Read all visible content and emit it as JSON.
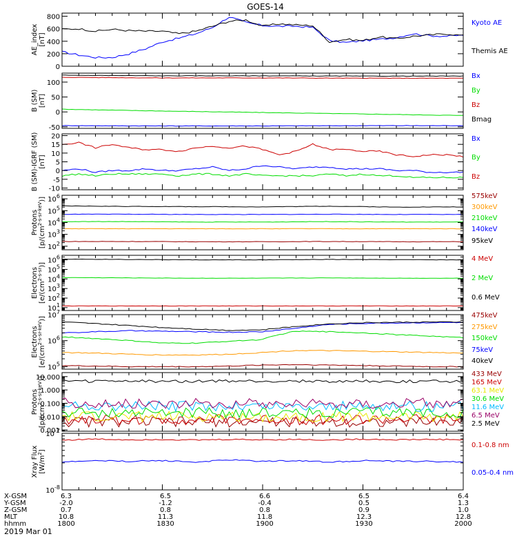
{
  "title": "GOES-14",
  "date_label": "2019 Mar 01",
  "colors": {
    "black": "#000000",
    "blue": "#0000ff",
    "green": "#00dd00",
    "red": "#cc0000",
    "orange": "#ff9900",
    "yellow": "#e8e800",
    "cyan": "#00bbff",
    "darkred": "#990000",
    "purple": "#990066",
    "darkblue": "#0000aa"
  },
  "footer": {
    "row_labels": [
      "X-GSM",
      "Y-GSM",
      "Z-GSM",
      "MLT",
      "hhmm"
    ],
    "columns": [
      [
        "6.3",
        "-2.0",
        "0.7",
        "10.8",
        "1800"
      ],
      [
        "6.5",
        "-1.2",
        "0.8",
        "11.3",
        "1830"
      ],
      [
        "6.6",
        "-0.4",
        "0.8",
        "11.8",
        "1900"
      ],
      [
        "6.5",
        "0.5",
        "0.9",
        "12.3",
        "1930"
      ],
      [
        "6.4",
        "1.3",
        "1.0",
        "12.8",
        "2000"
      ]
    ]
  },
  "chart_data": [
    {
      "type": "line",
      "ylabel": "AE_index [nT]",
      "scale": "linear",
      "ylim": [
        0,
        850
      ],
      "yticks": [
        0,
        200,
        400,
        600,
        800
      ],
      "ytick_labels": [
        "0",
        "200",
        "400",
        "600",
        "800"
      ],
      "x": [
        0,
        5,
        10,
        15,
        20,
        25,
        30,
        35,
        40,
        45,
        50,
        55,
        60,
        65,
        70,
        75,
        80,
        85,
        90,
        95,
        100,
        105,
        110,
        115,
        120
      ],
      "series": [
        {
          "name": "Kyoto AE",
          "color": "#0000ff",
          "values": [
            230,
            180,
            140,
            140,
            200,
            280,
            390,
            450,
            520,
            620,
            790,
            700,
            650,
            640,
            640,
            620,
            410,
            380,
            410,
            430,
            460,
            520,
            490,
            480,
            500
          ]
        },
        {
          "name": "Themis AE",
          "color": "#000000",
          "values": [
            590,
            600,
            560,
            590,
            570,
            560,
            560,
            520,
            560,
            640,
            720,
            740,
            640,
            680,
            660,
            650,
            390,
            430,
            410,
            470,
            440,
            480,
            500,
            520,
            490
          ]
        }
      ]
    },
    {
      "type": "line",
      "ylabel": "B (SM) [nT]",
      "scale": "linear",
      "ylim": [
        -55,
        130
      ],
      "yticks": [
        -50,
        0,
        50,
        100
      ],
      "ytick_labels": [
        "-50",
        "0",
        "50",
        "100"
      ],
      "x": [
        0,
        30,
        60,
        90,
        120
      ],
      "series": [
        {
          "name": "Bx",
          "color": "#0000ff",
          "values": [
            -46,
            -47,
            -47,
            -46,
            -46
          ]
        },
        {
          "name": "By",
          "color": "#00dd00",
          "values": [
            9,
            3,
            -2,
            -7,
            -12
          ]
        },
        {
          "name": "Bz",
          "color": "#cc0000",
          "values": [
            116,
            114,
            114,
            113,
            113
          ]
        },
        {
          "name": "Bmag",
          "color": "#000000",
          "values": [
            123,
            121,
            121,
            120,
            120
          ]
        }
      ]
    },
    {
      "type": "line",
      "ylabel": "B (SM)-IGRF (SM) [nT]",
      "scale": "linear",
      "ylim": [
        -11,
        21
      ],
      "yticks": [
        -10,
        -5,
        0,
        5,
        10,
        15,
        20
      ],
      "ytick_labels": [
        "-10",
        "-5",
        "0",
        "5",
        "10",
        "15",
        "20"
      ],
      "x": [
        0,
        5,
        10,
        15,
        20,
        25,
        30,
        35,
        40,
        45,
        50,
        55,
        60,
        65,
        70,
        75,
        80,
        85,
        90,
        95,
        100,
        105,
        110,
        115,
        120
      ],
      "series": [
        {
          "name": "Bx",
          "color": "#0000ff",
          "values": [
            0,
            1,
            -1,
            0,
            0,
            1,
            0,
            0,
            1,
            2,
            0,
            1,
            3,
            2,
            1,
            2,
            2,
            1,
            1,
            1,
            0,
            0,
            -1,
            -1,
            -1
          ]
        },
        {
          "name": "By",
          "color": "#00dd00",
          "values": [
            -3,
            -2,
            -3,
            -2,
            -2,
            -2,
            -2,
            -3,
            -2,
            -2,
            -3,
            -2,
            -3,
            -3,
            -3,
            -3,
            -2,
            -3,
            -2,
            -3,
            -3,
            -4,
            -4,
            -4,
            -4
          ]
        },
        {
          "name": "Bz",
          "color": "#cc0000",
          "values": [
            15,
            16,
            13,
            15,
            13,
            12,
            12,
            11,
            13,
            14,
            13,
            14,
            12,
            9,
            11,
            15,
            12,
            12,
            11,
            11,
            9,
            8,
            9,
            9,
            8
          ]
        }
      ]
    },
    {
      "type": "line",
      "ylabel": "Protons [p/(cm^2-s-sr-keV)]",
      "scale": "log",
      "ylim": [
        50,
        2000000
      ],
      "yticks": [
        100,
        1000,
        10000,
        100000,
        1000000
      ],
      "ytick_labels": [
        "10^2",
        "10^3",
        "10^4",
        "10^5",
        "10^6"
      ],
      "x": [
        0,
        20,
        40,
        60,
        80,
        100,
        120
      ],
      "series": [
        {
          "name": "575keV",
          "color": "#990000",
          "values": [
            250,
            250,
            240,
            240,
            250,
            240,
            240
          ]
        },
        {
          "name": "300keV",
          "color": "#ff9900",
          "values": [
            3000,
            3000,
            3000,
            3000,
            3000,
            3000,
            3000
          ]
        },
        {
          "name": "210keV",
          "color": "#00dd00",
          "values": [
            12000,
            12000,
            11000,
            11000,
            12000,
            11000,
            11000
          ]
        },
        {
          "name": "140keV",
          "color": "#0000ff",
          "values": [
            50000,
            50000,
            48000,
            48000,
            50000,
            48000,
            48000
          ]
        },
        {
          "name": "95keV",
          "color": "#000000",
          "values": [
            250000,
            230000,
            220000,
            210000,
            240000,
            200000,
            210000
          ]
        }
      ]
    },
    {
      "type": "line",
      "ylabel": "Electrons [e/(cm^2-s-sr)]",
      "scale": "log",
      "ylim": [
        5,
        3000000
      ],
      "yticks": [
        10,
        100,
        1000,
        10000,
        100000,
        1000000
      ],
      "ytick_labels": [
        "10^1",
        "10^2",
        "10^3",
        "10^4",
        "10^5",
        "10^6"
      ],
      "x": [
        0,
        20,
        40,
        60,
        80,
        100,
        120
      ],
      "series": [
        {
          "name": "4 MeV",
          "color": "#cc0000",
          "values": [
            15,
            15,
            15,
            15,
            15,
            15,
            15
          ]
        },
        {
          "name": "2 MeV",
          "color": "#00dd00",
          "values": [
            14000,
            13000,
            12000,
            12000,
            13000,
            12000,
            12000
          ]
        },
        {
          "name": "0.6 MeV",
          "color": "#000000",
          "values": [
            1200000,
            1100000,
            1000000,
            1000000,
            1100000,
            1050000,
            1000000
          ]
        }
      ]
    },
    {
      "type": "line",
      "ylabel": "Electrons [e/(cm^2-s-sr-keV)]",
      "scale": "log",
      "ylim": [
        80000,
        10000000
      ],
      "yticks": [
        100000,
        1000000,
        10000000
      ],
      "ytick_labels": [
        "10^5",
        "10^6",
        "10^7"
      ],
      "x": [
        0,
        10,
        20,
        30,
        40,
        50,
        60,
        70,
        80,
        90,
        100,
        110,
        120
      ],
      "series": [
        {
          "name": "475keV",
          "color": "#990000",
          "values": [
            110000,
            105000,
            100000,
            100000,
            100000,
            105000,
            115000,
            120000,
            115000,
            110000,
            105000,
            100000,
            100000
          ]
        },
        {
          "name": "275keV",
          "color": "#ff9900",
          "values": [
            350000,
            330000,
            300000,
            280000,
            280000,
            300000,
            350000,
            420000,
            410000,
            390000,
            370000,
            350000,
            330000
          ]
        },
        {
          "name": "150keV",
          "color": "#00dd00",
          "values": [
            1400000,
            1200000,
            1000000,
            800000,
            800000,
            950000,
            1100000,
            2300000,
            2200000,
            2000000,
            1700000,
            1500000,
            1300000
          ]
        },
        {
          "name": "75keV",
          "color": "#0000ff",
          "values": [
            2000000,
            2200000,
            2400000,
            2300000,
            2200000,
            2100000,
            2200000,
            3000000,
            4200000,
            4600000,
            4800000,
            4900000,
            5000000
          ]
        },
        {
          "name": "40keV",
          "color": "#000000",
          "values": [
            5200000,
            4500000,
            3800000,
            3200000,
            2800000,
            2500000,
            2600000,
            3500000,
            4400000,
            4900000,
            5100000,
            5200000,
            5200000
          ]
        }
      ]
    },
    {
      "type": "line",
      "ylabel": "Protons [p/(cm^2-s-sr-keV)]",
      "scale": "log",
      "ylim": [
        0.0008,
        20
      ],
      "yticks": [
        0.001,
        0.01,
        0.1,
        1,
        10
      ],
      "ytick_labels": [
        "0.001",
        "0.010",
        "0.100",
        "1.000",
        "10.000"
      ],
      "x": [
        0,
        120
      ],
      "series": [
        {
          "name": "433 MeV",
          "color": "#990000",
          "values": [
            0.004,
            0.004
          ]
        },
        {
          "name": "165 MeV",
          "color": "#cc0000",
          "values": [
            0.006,
            0.006
          ]
        },
        {
          "name": "63.1 MeV",
          "color": "#e8e800",
          "values": [
            0.01,
            0.01
          ]
        },
        {
          "name": "30.6 MeV",
          "color": "#00dd00",
          "values": [
            0.02,
            0.02
          ]
        },
        {
          "name": "11.6 MeV",
          "color": "#00bbff",
          "values": [
            0.06,
            0.06
          ]
        },
        {
          "name": "6.5 MeV",
          "color": "#990066",
          "values": [
            0.1,
            0.1
          ]
        },
        {
          "name": "2.5 MeV",
          "color": "#000000",
          "values": [
            4.5,
            4.5
          ]
        }
      ]
    },
    {
      "type": "line",
      "ylabel": "Xray Flux [W/m^2]",
      "scale": "log",
      "ylim": [
        1e-08,
        1e-07
      ],
      "yticks": [
        1e-08,
        1e-07
      ],
      "ytick_labels": [
        "10^-8",
        "10^-7"
      ],
      "x": [
        0,
        10,
        20,
        30,
        40,
        50,
        60,
        70,
        80,
        90,
        100,
        110,
        120
      ],
      "series": [
        {
          "name": "0.1-0.8 nm",
          "color": "#cc0000",
          "values": [
            7.6e-08,
            7.9e-08,
            7.7e-08,
            7.8e-08,
            7.6e-08,
            7.8e-08,
            7.7e-08,
            7.8e-08,
            7.6e-08,
            7.9e-08,
            7.7e-08,
            7.8e-08,
            7.7e-08
          ]
        },
        {
          "name": "0.05-0.4 nm",
          "color": "#0000ff",
          "values": [
            3.1e-08,
            3.3e-08,
            3.2e-08,
            3.3e-08,
            3.1e-08,
            3.4e-08,
            3.2e-08,
            3.3e-08,
            3.1e-08,
            3.3e-08,
            3.2e-08,
            3.2e-08,
            3.1e-08
          ]
        }
      ]
    }
  ]
}
